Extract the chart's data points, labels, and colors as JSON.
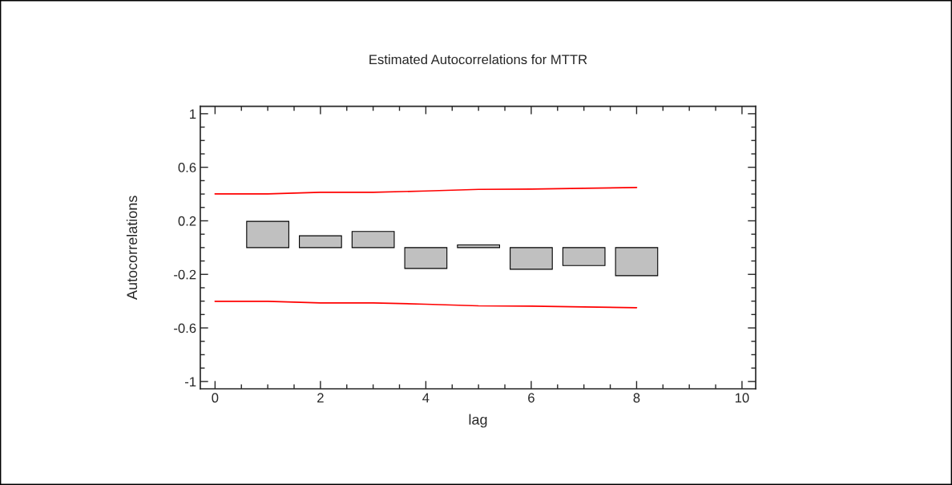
{
  "chart_data": {
    "type": "bar",
    "title": "Estimated Autocorrelations for MTTR",
    "xlabel": "lag",
    "ylabel": "Autocorrelations",
    "x": [
      1,
      2,
      3,
      4,
      5,
      6,
      7,
      8
    ],
    "series": [
      {
        "color": "#c0c0c0",
        "values": [
          0.196,
          0.088,
          0.12,
          -0.156,
          0.02,
          -0.162,
          -0.134,
          -0.21
        ]
      },
      {
        "type": "line",
        "color": "#ff0000",
        "x": [
          0,
          1,
          2,
          3,
          4,
          5,
          6,
          7,
          8
        ],
        "values": [
          0.401,
          0.401,
          0.413,
          0.413,
          0.423,
          0.435,
          0.437,
          0.443,
          0.449
        ]
      },
      {
        "type": "line",
        "color": "#ff0000",
        "x": [
          0,
          1,
          2,
          3,
          4,
          5,
          6,
          7,
          8
        ],
        "values": [
          -0.401,
          -0.401,
          -0.413,
          -0.413,
          -0.423,
          -0.435,
          -0.437,
          -0.443,
          -0.449
        ]
      }
    ],
    "xlim": [
      -0.28,
      10.26
    ],
    "ylim": [
      -1.055,
      1.055
    ],
    "xticks": [
      0,
      2,
      4,
      6,
      8,
      10
    ],
    "yticks": [
      -1,
      -0.6,
      -0.2,
      0.2,
      0.6,
      1
    ],
    "grid": false,
    "legend": false
  }
}
